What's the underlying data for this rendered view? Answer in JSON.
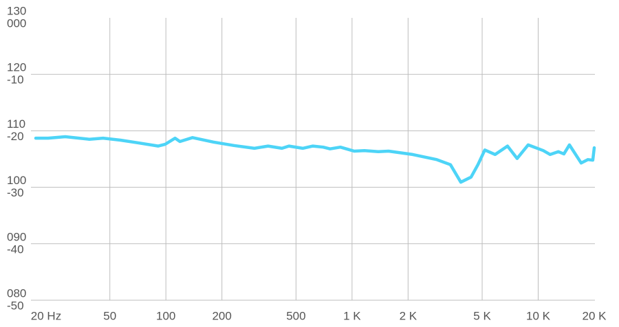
{
  "chart_data": {
    "type": "line",
    "xscale": "log",
    "color": "#4dd4f7",
    "grid": true,
    "x": [
      20,
      23.3,
      28.8,
      38.8,
      46,
      57,
      70,
      91,
      99,
      112,
      119,
      139,
      180,
      232,
      299,
      354,
      420,
      458,
      543,
      616,
      700,
      762,
      866,
      1027,
      1166,
      1383,
      1571,
      2116,
      2850,
      3378,
      3838,
      4358,
      4746,
      5168,
      5872,
      6842,
      7708,
      8832,
      10648,
      11594,
      12842,
      13748,
      14716,
      17008,
      18512,
      19640,
      20000
    ],
    "values": [
      108.7,
      108.7,
      108.95,
      108.5,
      108.7,
      108.35,
      107.9,
      107.3,
      107.6,
      108.7,
      108.1,
      108.8,
      108.0,
      107.4,
      106.9,
      107.3,
      106.9,
      107.3,
      106.9,
      107.3,
      107.1,
      106.8,
      107.1,
      106.4,
      106.5,
      106.3,
      106.4,
      105.8,
      104.9,
      104.0,
      100.9,
      101.8,
      104.0,
      106.6,
      105.8,
      107.3,
      105.1,
      107.5,
      106.5,
      105.8,
      106.3,
      105.9,
      107.5,
      104.3,
      104.9,
      104.8,
      107.0
    ],
    "xlim": [
      20,
      20000
    ],
    "xticks": [
      {
        "value": 20,
        "label": "20 Hz"
      },
      50,
      100,
      200,
      500,
      {
        "value": 1000,
        "label": "1 K"
      },
      {
        "value": 2000,
        "label": "2 K"
      },
      {
        "value": 5000,
        "label": "5 K"
      },
      {
        "value": 10000,
        "label": "10 K"
      },
      {
        "value": 20000,
        "label": "20 K"
      }
    ],
    "ylim": [
      80,
      130
    ],
    "yticks": [
      130,
      120,
      110,
      100,
      {
        "value": 90,
        "label": "090"
      },
      {
        "value": 80,
        "label": "080"
      }
    ],
    "y2lim": [
      -50,
      0
    ],
    "y2ticks": [
      {
        "value": 0,
        "label": "000"
      },
      -10,
      -20,
      -30,
      -40,
      -50
    ]
  }
}
